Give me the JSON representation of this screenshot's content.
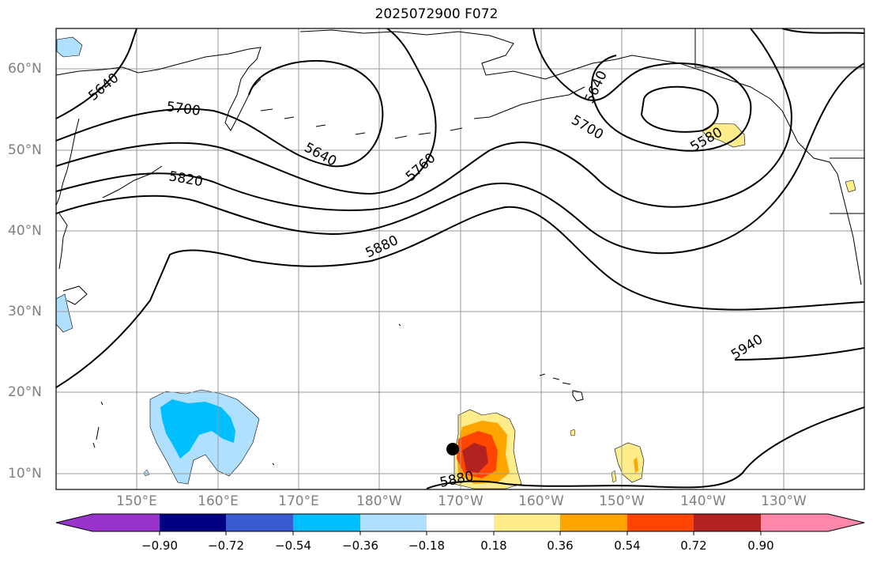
{
  "title": "2025072900 F072",
  "lat_labels": [
    "60°N",
    "50°N",
    "40°N",
    "30°N",
    "20°N",
    "10°N"
  ],
  "lon_labels": [
    "150°E",
    "160°E",
    "170°E",
    "180°W",
    "170°W",
    "160°W",
    "150°W",
    "140°W",
    "130°W"
  ],
  "contour_labels": [
    "5640",
    "5700",
    "5640",
    "5760",
    "5700",
    "5640",
    "5580",
    "5820",
    "5880",
    "5940",
    "5880"
  ],
  "colorbar": {
    "ticks": [
      "−0.90",
      "−0.72",
      "−0.54",
      "−0.36",
      "−0.18",
      "0.18",
      "0.36",
      "0.54",
      "0.72",
      "0.90"
    ],
    "colors": [
      "#9933cc",
      "#000080",
      "#3a5bd0",
      "#00bfff",
      "#b0e0ff",
      "#ffffff",
      "#ffec8b",
      "#ffa500",
      "#ff4500",
      "#b22222",
      "#ff88aa"
    ]
  },
  "storm_marker": "black-dot"
}
